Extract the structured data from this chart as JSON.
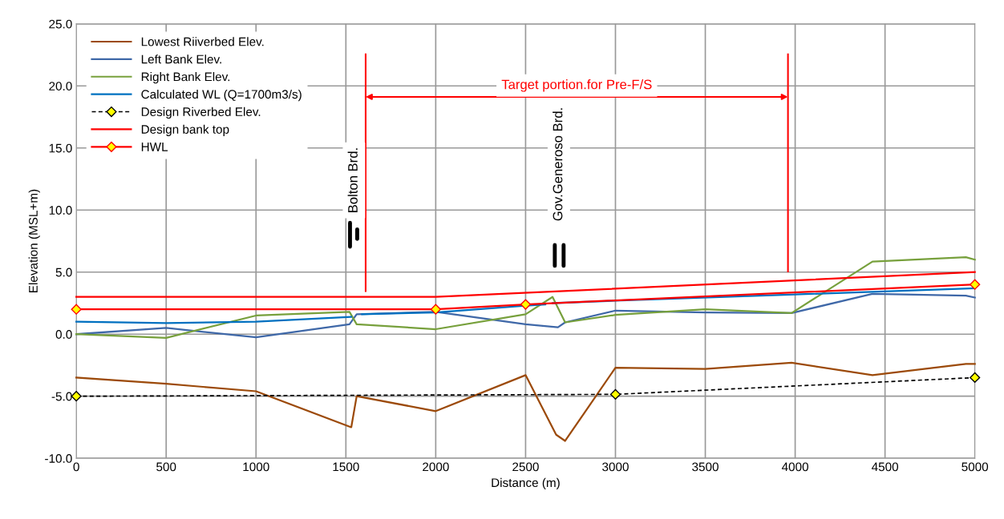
{
  "chart_data": {
    "type": "line",
    "xlabel": "Distance (m)",
    "ylabel": "Elevation (MSL+m)",
    "series": [
      {
        "name": "Lowest Riiverbed Elev.",
        "color": "#9c4a0a",
        "x": [
          0,
          500,
          1000,
          1530,
          1560,
          2000,
          2500,
          2670,
          2720,
          3000,
          3500,
          3980,
          4430,
          4950,
          5000
        ],
        "values": [
          -3.5,
          -4.0,
          -4.6,
          -7.5,
          -5.0,
          -6.2,
          -3.3,
          -8.1,
          -8.6,
          -2.7,
          -2.8,
          -2.3,
          -3.3,
          -2.4,
          -2.4
        ],
        "marker": "none"
      },
      {
        "name": "Left Bank Elev.",
        "color": "#3f68a8",
        "x": [
          0,
          500,
          1000,
          1520,
          1560,
          2000,
          2500,
          2680,
          2720,
          3000,
          3500,
          3980,
          4430,
          4950,
          5000
        ],
        "values": [
          0,
          0.5,
          -0.25,
          0.8,
          1.6,
          1.8,
          0.8,
          0.55,
          0.95,
          1.9,
          1.75,
          1.7,
          3.25,
          3.1,
          2.95
        ],
        "marker": "none"
      },
      {
        "name": "Right Bank Elev.",
        "color": "#77a03c",
        "x": [
          0,
          500,
          1000,
          1520,
          1560,
          2000,
          2500,
          2650,
          2720,
          3000,
          3500,
          3980,
          4430,
          4950,
          5000
        ],
        "values": [
          0,
          -0.3,
          1.5,
          1.8,
          0.8,
          0.4,
          1.6,
          3.0,
          0.95,
          1.55,
          2.0,
          1.7,
          5.85,
          6.2,
          6.0
        ],
        "marker": "none"
      },
      {
        "name": "Calculated WL (Q=1700m3/s)",
        "color": "#0070c0",
        "x": [
          0,
          500,
          1000,
          1530,
          1560,
          1590,
          2000,
          2500,
          2610,
          2630,
          2650,
          3000,
          4000,
          5000
        ],
        "values": [
          1.0,
          0.9,
          1.0,
          1.4,
          null,
          1.6,
          1.75,
          2.3,
          2.4,
          null,
          2.5,
          2.7,
          3.2,
          3.7
        ],
        "marker": "none"
      },
      {
        "name": "Design Riverbed Elev.",
        "color": "#000000",
        "x": [
          0,
          3000,
          5000
        ],
        "values": [
          -5.0,
          -4.85,
          -3.5
        ],
        "marker": "diamond",
        "line_style": "dashed"
      },
      {
        "name": "Design bank top",
        "color": "#ff0000",
        "x": [
          0,
          2000,
          5000
        ],
        "values": [
          3.0,
          3.0,
          5.0
        ],
        "marker": "none"
      },
      {
        "name": "HWL",
        "color": "#ff0000",
        "x": [
          0,
          2000,
          2500,
          5000
        ],
        "values": [
          2.0,
          2.0,
          2.4,
          4.0
        ],
        "marker": "diamond"
      }
    ],
    "xlim": [
      0,
      5000
    ],
    "xticks": [
      0,
      500,
      1000,
      1500,
      2000,
      2500,
      3000,
      3500,
      4000,
      4500,
      5000
    ],
    "ylim": [
      -10,
      25
    ],
    "yticks": [
      {
        "value": -10,
        "label": "-10.0"
      },
      {
        "value": -5,
        "label": "-5.0"
      },
      {
        "value": 0,
        "label": "0.0"
      },
      {
        "value": 5,
        "label": "5.0"
      },
      {
        "value": 10,
        "label": "10.0"
      },
      {
        "value": 15,
        "label": "15.0"
      },
      {
        "value": 20,
        "label": "20.0"
      },
      {
        "value": 25,
        "label": "25.0"
      }
    ],
    "ref_lines": [
      {
        "axis": "x",
        "value": 1610,
        "color": "#ff0000"
      },
      {
        "axis": "x",
        "value": 3960,
        "color": "#ff0000"
      }
    ],
    "annotations": [
      "Target portion.for Pre-F/S",
      "Bolton Brd.",
      "Gov.Generoso Brd."
    ],
    "grid": true,
    "legend": "top left"
  }
}
